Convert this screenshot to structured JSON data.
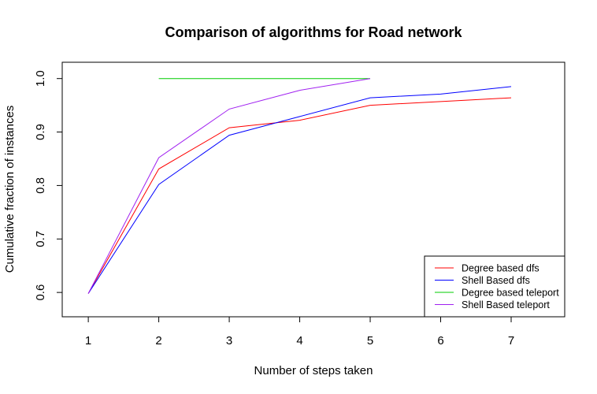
{
  "chart_data": {
    "type": "line",
    "title": "Comparison of algorithms for Road network",
    "xlabel": "Number of steps taken",
    "ylabel": "Cumulative fraction of instances",
    "xlim": [
      0.63,
      7.76
    ],
    "ylim": [
      0.5545,
      1.0305
    ],
    "x_ticks": [
      1,
      2,
      3,
      4,
      5,
      6,
      7
    ],
    "y_ticks": [
      0.6,
      0.7,
      0.8,
      0.9,
      1.0
    ],
    "y_tick_labels": [
      "0.6",
      "0.7",
      "0.8",
      "0.9",
      "1.0"
    ],
    "grid": false,
    "legend": {
      "position": "bottom-right"
    },
    "series": [
      {
        "name": "Degree based dfs",
        "color": "#ff0000",
        "x": [
          1,
          2,
          3,
          4,
          5,
          6,
          7
        ],
        "y": [
          0.598,
          0.831,
          0.908,
          0.922,
          0.95,
          0.957,
          0.964
        ]
      },
      {
        "name": "Shell Based dfs",
        "color": "#0000ff",
        "x": [
          1,
          2,
          3,
          4,
          5,
          6,
          7
        ],
        "y": [
          0.598,
          0.802,
          0.894,
          0.929,
          0.964,
          0.971,
          0.985
        ]
      },
      {
        "name": "Degree based teleport",
        "color": "#00cc00",
        "x": [
          2,
          3,
          4,
          5
        ],
        "y": [
          1.0,
          1.0,
          1.0,
          1.0
        ]
      },
      {
        "name": "Shell Based teleport",
        "color": "#a020f0",
        "x": [
          1,
          2,
          3,
          4,
          5
        ],
        "y": [
          0.598,
          0.852,
          0.943,
          0.978,
          1.0
        ]
      }
    ]
  }
}
